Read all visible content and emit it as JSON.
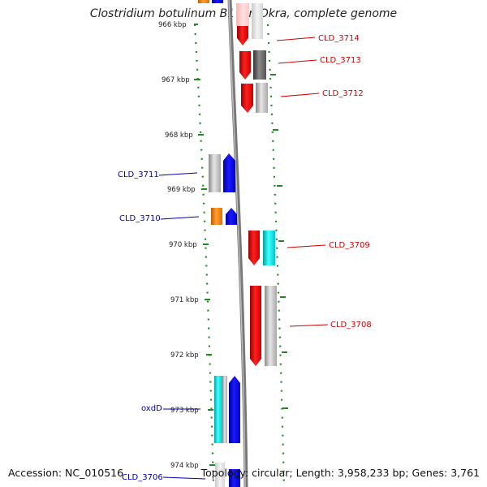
{
  "title": "Clostridium botulinum B1 str. Okra, complete genome",
  "footer": {
    "accession": "Accession: NC_010516",
    "summary": "Topology: circular; Length: 3,958,233 bp; Genes: 3,761"
  },
  "colors": {
    "forward_label": "#cc0000",
    "reverse_label": "#0000aa",
    "backbone": "#888888",
    "tick": "#228822",
    "red_gene": "#ff0000",
    "blue_gene": "#0000ff",
    "orange_gene": "#ff8800",
    "cyan_gene": "#00e0e0",
    "grey_gene": "#b0b0b0",
    "dark_grey_gene": "#555555"
  },
  "scale": {
    "ticks": [
      {
        "label": "966 kbp",
        "kbp": 966
      },
      {
        "label": "967 kbp",
        "kbp": 967
      },
      {
        "label": "968 kbp",
        "kbp": 968
      },
      {
        "label": "969 kbp",
        "kbp": 969
      },
      {
        "label": "970 kbp",
        "kbp": 970
      },
      {
        "label": "971 kbp",
        "kbp": 971
      },
      {
        "label": "972 kbp",
        "kbp": 972
      },
      {
        "label": "973 kbp",
        "kbp": 973
      },
      {
        "label": "974 kbp",
        "kbp": 974
      }
    ]
  },
  "gene_labels": [
    {
      "name": "CLD_3714",
      "strand": "forward"
    },
    {
      "name": "CLD_3713",
      "strand": "forward"
    },
    {
      "name": "CLD_3712",
      "strand": "forward"
    },
    {
      "name": "CLD_3711",
      "strand": "reverse"
    },
    {
      "name": "CLD_3710",
      "strand": "reverse"
    },
    {
      "name": "CLD_3709",
      "strand": "forward"
    },
    {
      "name": "CLD_3708",
      "strand": "forward"
    },
    {
      "name": "oxdD",
      "strand": "reverse"
    },
    {
      "name": "CLD_3706",
      "strand": "reverse"
    }
  ]
}
